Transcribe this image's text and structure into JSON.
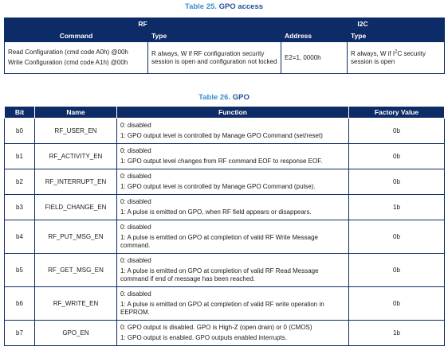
{
  "table25": {
    "caption_num": "Table 25.",
    "caption_title": "GPO access",
    "group_rf": "RF",
    "group_i2c": "I2C",
    "col_command": "Command",
    "col_type": "Type",
    "col_address": "Address",
    "col_type2": "Type",
    "command_line1": "Read Configuration (cmd code A0h) @00h",
    "command_line2": "Write Configuration (cmd code A1h) @00h",
    "rf_type": "R always, W if RF configuration security session is open and configuration not locked",
    "address": "E2=1, 0000h",
    "i2c_type_pre": "R always, W if I",
    "i2c_type_sup": "2",
    "i2c_type_post": "C security session is open"
  },
  "table26": {
    "caption_num": "Table 26.",
    "caption_title": "GPO",
    "headers": [
      "Bit",
      "Name",
      "Function",
      "Factory Value"
    ],
    "rows": [
      {
        "bit": "b0",
        "name": "RF_USER_EN",
        "f0": "0: disabled",
        "f1": "1: GPO output level is controlled by Manage GPO Command (set/reset)",
        "value": "0b"
      },
      {
        "bit": "b1",
        "name": "RF_ACTIVITY_EN",
        "f0": "0: disabled",
        "f1": "1: GPO output level changes from RF command EOF to response EOF.",
        "value": "0b"
      },
      {
        "bit": "b2",
        "name": "RF_INTERRUPT_EN",
        "f0": "0: disabled",
        "f1": "1: GPO output level is controlled by Manage GPO Command (pulse).",
        "value": "0b"
      },
      {
        "bit": "b3",
        "name": "FIELD_CHANGE_EN",
        "f0": "0: disabled",
        "f1": "1: A pulse is emitted on GPO, when RF field appears or disappears.",
        "value": "1b"
      },
      {
        "bit": "b4",
        "name": "RF_PUT_MSG_EN",
        "f0": "0: disabled",
        "f1": "1: A pulse is emitted on GPO at completion of valid RF Write Message command.",
        "value": "0b"
      },
      {
        "bit": "b5",
        "name": "RF_GET_MSG_EN",
        "f0": "0: disabled",
        "f1": "1: A pulse is emitted on GPO at completion of valid RF Read Message command if end of message has been reached.",
        "value": "0b"
      },
      {
        "bit": "b6",
        "name": "RF_WRITE_EN",
        "f0": "0: disabled",
        "f1": "1: A pulse is emitted on GPO at completion of valid RF write operation in EEPROM.",
        "value": "0b"
      },
      {
        "bit": "b7",
        "name": "GPO_EN",
        "f0": "0: GPO output is disabled. GPO is High-Z (open drain) or 0 (CMOS)",
        "f1": "1: GPO output is enabled. GPO outputs enabled interrupts.",
        "value": "1b"
      }
    ]
  }
}
